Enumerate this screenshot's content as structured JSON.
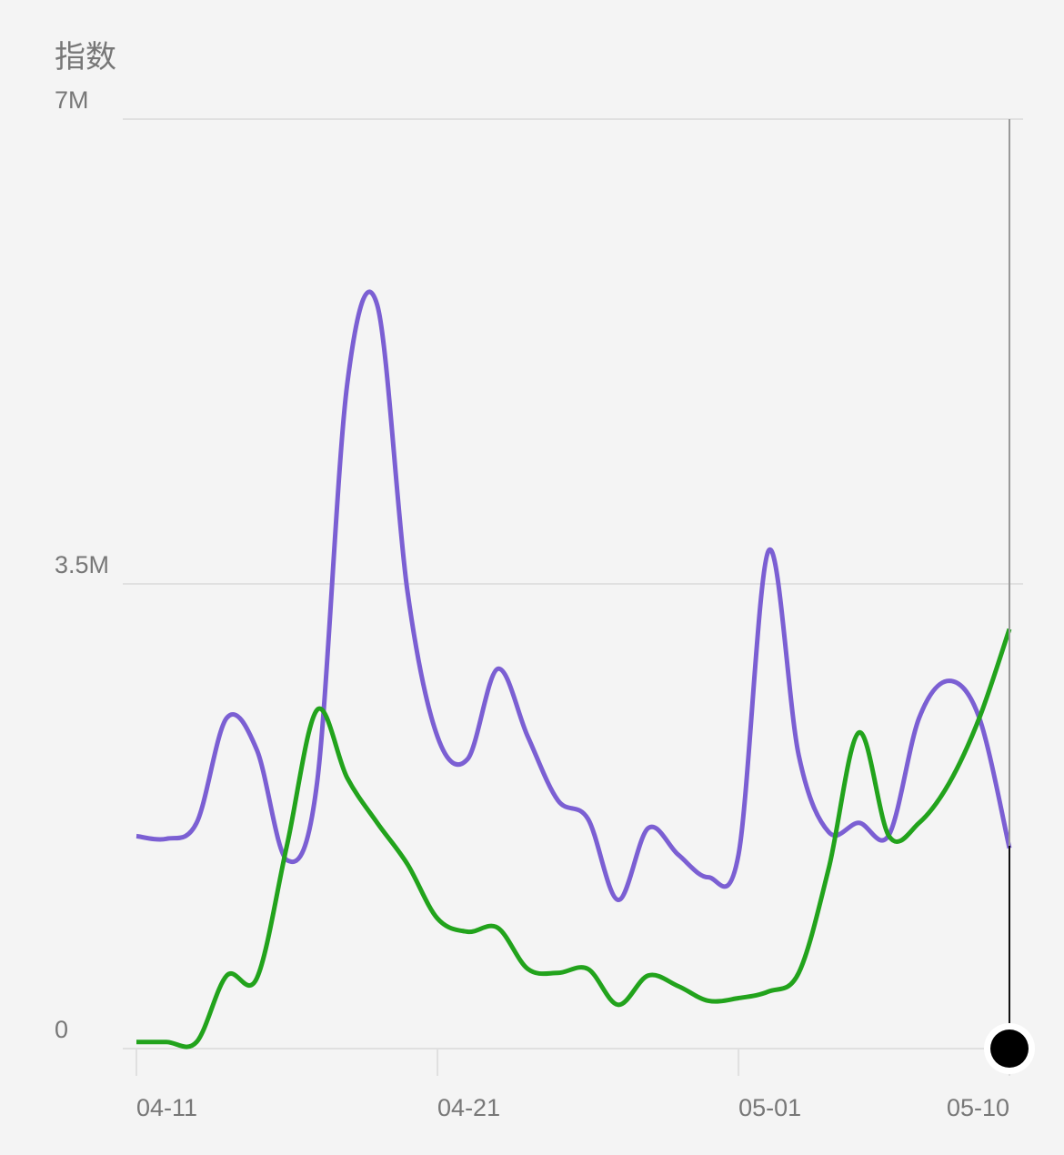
{
  "chart_data": {
    "type": "line",
    "title": "指数",
    "categories": [
      "04-11",
      null,
      null,
      null,
      null,
      null,
      null,
      null,
      null,
      null,
      "04-21",
      null,
      null,
      null,
      null,
      null,
      null,
      null,
      null,
      null,
      "05-01",
      null,
      null,
      null,
      null,
      null,
      null,
      null,
      null,
      "05-10"
    ],
    "series": [
      {
        "color": "#7b5fd3",
        "values": [
          1600000,
          1580000,
          1700000,
          2490000,
          2250000,
          1420000,
          2000000,
          5000000,
          5600000,
          3450000,
          2350000,
          2180000,
          2860000,
          2350000,
          1870000,
          1730000,
          1120000,
          1660000,
          1460000,
          1290000,
          1460000,
          3750000,
          2210000,
          1630000,
          1700000,
          1610000,
          2490000,
          2770000,
          2490000,
          1510000
        ]
      },
      {
        "color": "#22a31c",
        "values": [
          50000,
          50000,
          50000,
          550000,
          530000,
          1530000,
          2550000,
          2040000,
          1700000,
          1390000,
          980000,
          880000,
          910000,
          600000,
          570000,
          600000,
          330000,
          550000,
          470000,
          360000,
          380000,
          430000,
          570000,
          1360000,
          2380000,
          1600000,
          1700000,
          2000000,
          2490000,
          3160000
        ]
      }
    ],
    "ylim": [
      0,
      7000000
    ],
    "yticks": [
      {
        "value": 0,
        "label": "0"
      },
      {
        "value": 3500000,
        "label": "3.5M"
      },
      {
        "value": 7000000,
        "label": "7M"
      }
    ],
    "grid": true
  }
}
